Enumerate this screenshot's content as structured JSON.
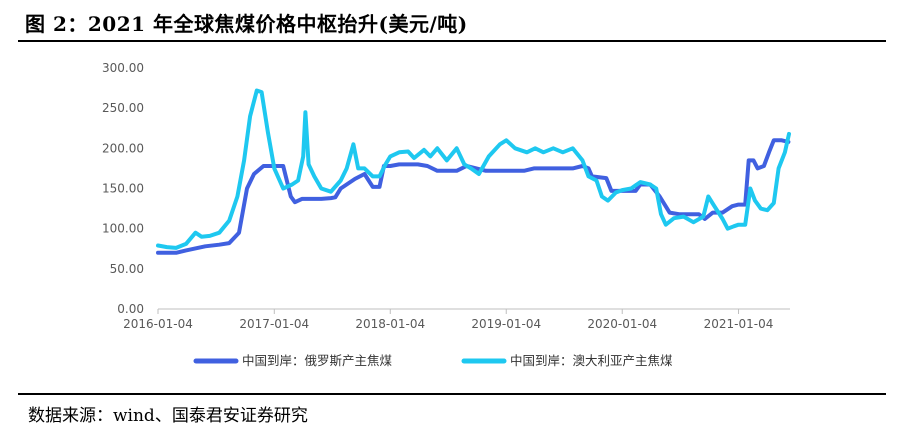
{
  "figure": {
    "title": "图 2：2021 年全球焦煤价格中枢抬升(美元/吨)",
    "source": "数据来源：wind、国泰君安证券研究"
  },
  "chart_data": {
    "type": "line",
    "title": "图 2：2021 年全球焦煤价格中枢抬升(美元/吨)",
    "xlabel": "",
    "ylabel": "",
    "x_type": "date",
    "xlim": [
      "2016-01-04",
      "2021-06-15"
    ],
    "ylim": [
      0,
      300
    ],
    "y_ticks": [
      0,
      50,
      100,
      150,
      200,
      250,
      300
    ],
    "y_tick_labels": [
      "0.00",
      "50.00",
      "100.00",
      "150.00",
      "200.00",
      "250.00",
      "300.00"
    ],
    "x_ticks": [
      "2016-01-04",
      "2017-01-04",
      "2018-01-04",
      "2019-01-04",
      "2020-01-04",
      "2021-01-04"
    ],
    "x_tick_labels": [
      "2016-01-04",
      "2017-01-04",
      "2018-01-04",
      "2019-01-04",
      "2020-01-04",
      "2021-01-04"
    ],
    "grid": false,
    "legend_position": "bottom",
    "series": [
      {
        "name": "中国到岸：俄罗斯产主焦煤",
        "color": "#4060e0",
        "points": [
          [
            "2016-01-04",
            70
          ],
          [
            "2016-03-01",
            70
          ],
          [
            "2016-04-01",
            73
          ],
          [
            "2016-06-01",
            78
          ],
          [
            "2016-07-15",
            80
          ],
          [
            "2016-08-15",
            82
          ],
          [
            "2016-09-15",
            95
          ],
          [
            "2016-10-10",
            150
          ],
          [
            "2016-11-01",
            168
          ],
          [
            "2016-12-01",
            178
          ],
          [
            "2017-01-04",
            178
          ],
          [
            "2017-02-01",
            178
          ],
          [
            "2017-02-25",
            140
          ],
          [
            "2017-03-10",
            133
          ],
          [
            "2017-04-01",
            137
          ],
          [
            "2017-06-01",
            137
          ],
          [
            "2017-07-01",
            138
          ],
          [
            "2017-07-15",
            139
          ],
          [
            "2017-08-01",
            150
          ],
          [
            "2017-09-15",
            162
          ],
          [
            "2017-10-15",
            168
          ],
          [
            "2017-11-10",
            152
          ],
          [
            "2017-12-01",
            152
          ],
          [
            "2017-12-15",
            178
          ],
          [
            "2018-01-04",
            178
          ],
          [
            "2018-02-01",
            180
          ],
          [
            "2018-04-01",
            180
          ],
          [
            "2018-05-01",
            178
          ],
          [
            "2018-06-01",
            172
          ],
          [
            "2018-08-01",
            172
          ],
          [
            "2018-09-01",
            178
          ],
          [
            "2018-11-01",
            172
          ],
          [
            "2019-03-01",
            172
          ],
          [
            "2019-04-01",
            175
          ],
          [
            "2019-08-01",
            175
          ],
          [
            "2019-09-01",
            178
          ],
          [
            "2019-09-20",
            175
          ],
          [
            "2019-10-01",
            165
          ],
          [
            "2019-11-15",
            163
          ],
          [
            "2019-12-01",
            147
          ],
          [
            "2020-01-04",
            147
          ],
          [
            "2020-02-15",
            147
          ],
          [
            "2020-03-01",
            155
          ],
          [
            "2020-04-01",
            155
          ],
          [
            "2020-05-01",
            140
          ],
          [
            "2020-06-01",
            120
          ],
          [
            "2020-07-01",
            118
          ],
          [
            "2020-09-01",
            118
          ],
          [
            "2020-09-20",
            112
          ],
          [
            "2020-10-15",
            120
          ],
          [
            "2020-11-15",
            120
          ],
          [
            "2020-12-15",
            128
          ],
          [
            "2021-01-04",
            130
          ],
          [
            "2021-01-25",
            130
          ],
          [
            "2021-02-05",
            185
          ],
          [
            "2021-02-20",
            185
          ],
          [
            "2021-03-05",
            175
          ],
          [
            "2021-03-25",
            178
          ],
          [
            "2021-04-10",
            195
          ],
          [
            "2021-04-25",
            210
          ],
          [
            "2021-05-20",
            210
          ],
          [
            "2021-06-10",
            208
          ]
        ]
      },
      {
        "name": "中国到岸：澳大利亚产主焦煤",
        "color": "#1ec8f0",
        "points": [
          [
            "2016-01-04",
            79
          ],
          [
            "2016-02-01",
            77
          ],
          [
            "2016-03-01",
            76
          ],
          [
            "2016-04-01",
            81
          ],
          [
            "2016-05-01",
            95
          ],
          [
            "2016-05-20",
            90
          ],
          [
            "2016-06-15",
            91
          ],
          [
            "2016-07-15",
            95
          ],
          [
            "2016-08-15",
            110
          ],
          [
            "2016-09-10",
            140
          ],
          [
            "2016-10-01",
            185
          ],
          [
            "2016-10-20",
            240
          ],
          [
            "2016-11-10",
            272
          ],
          [
            "2016-11-25",
            270
          ],
          [
            "2016-12-15",
            220
          ],
          [
            "2017-01-04",
            175
          ],
          [
            "2017-02-01",
            150
          ],
          [
            "2017-03-01",
            155
          ],
          [
            "2017-03-20",
            160
          ],
          [
            "2017-04-05",
            190
          ],
          [
            "2017-04-12",
            245
          ],
          [
            "2017-04-22",
            180
          ],
          [
            "2017-05-10",
            165
          ],
          [
            "2017-06-01",
            150
          ],
          [
            "2017-07-01",
            146
          ],
          [
            "2017-08-01",
            160
          ],
          [
            "2017-08-20",
            175
          ],
          [
            "2017-09-10",
            205
          ],
          [
            "2017-09-25",
            175
          ],
          [
            "2017-10-15",
            175
          ],
          [
            "2017-11-10",
            165
          ],
          [
            "2017-12-01",
            165
          ],
          [
            "2017-12-20",
            180
          ],
          [
            "2018-01-04",
            190
          ],
          [
            "2018-02-01",
            195
          ],
          [
            "2018-03-01",
            196
          ],
          [
            "2018-03-20",
            188
          ],
          [
            "2018-04-20",
            198
          ],
          [
            "2018-05-10",
            190
          ],
          [
            "2018-06-01",
            200
          ],
          [
            "2018-07-01",
            185
          ],
          [
            "2018-08-01",
            200
          ],
          [
            "2018-08-25",
            180
          ],
          [
            "2018-09-15",
            175
          ],
          [
            "2018-10-10",
            168
          ],
          [
            "2018-11-10",
            190
          ],
          [
            "2018-12-15",
            205
          ],
          [
            "2019-01-04",
            210
          ],
          [
            "2019-02-01",
            200
          ],
          [
            "2019-03-10",
            195
          ],
          [
            "2019-04-05",
            200
          ],
          [
            "2019-05-01",
            195
          ],
          [
            "2019-06-01",
            200
          ],
          [
            "2019-07-01",
            195
          ],
          [
            "2019-08-01",
            200
          ],
          [
            "2019-09-01",
            185
          ],
          [
            "2019-09-20",
            165
          ],
          [
            "2019-10-15",
            160
          ],
          [
            "2019-11-01",
            140
          ],
          [
            "2019-11-20",
            135
          ],
          [
            "2019-12-15",
            145
          ],
          [
            "2020-01-04",
            148
          ],
          [
            "2020-02-01",
            150
          ],
          [
            "2020-03-01",
            158
          ],
          [
            "2020-04-01",
            155
          ],
          [
            "2020-04-20",
            150
          ],
          [
            "2020-05-05",
            118
          ],
          [
            "2020-05-20",
            105
          ],
          [
            "2020-06-15",
            113
          ],
          [
            "2020-07-15",
            115
          ],
          [
            "2020-08-15",
            108
          ],
          [
            "2020-09-15",
            115
          ],
          [
            "2020-10-01",
            140
          ],
          [
            "2020-10-20",
            128
          ],
          [
            "2020-11-15",
            112
          ],
          [
            "2020-12-01",
            100
          ],
          [
            "2020-12-20",
            103
          ],
          [
            "2021-01-04",
            105
          ],
          [
            "2021-01-25",
            105
          ],
          [
            "2021-02-10",
            150
          ],
          [
            "2021-02-25",
            135
          ],
          [
            "2021-03-15",
            125
          ],
          [
            "2021-04-05",
            123
          ],
          [
            "2021-04-25",
            132
          ],
          [
            "2021-05-10",
            175
          ],
          [
            "2021-05-30",
            195
          ],
          [
            "2021-06-12",
            218
          ]
        ]
      }
    ]
  }
}
